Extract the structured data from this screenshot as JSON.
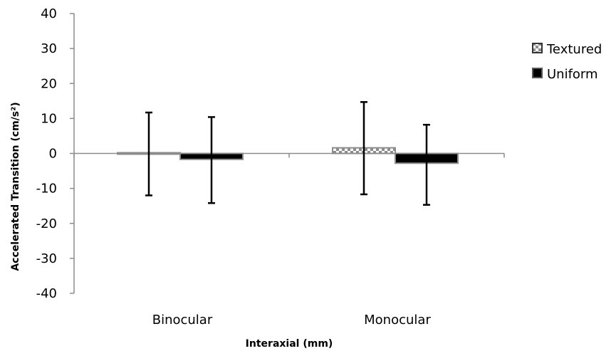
{
  "chart_data": {
    "type": "bar",
    "title": "",
    "xlabel": "Interaxial (mm)",
    "ylabel": "Accelerated Transition (cm/s²)",
    "ylim": [
      -40,
      40
    ],
    "yticks": [
      40,
      30,
      20,
      10,
      0,
      -10,
      -20,
      -30,
      -40
    ],
    "categories": [
      "Binocular",
      "Monocular"
    ],
    "series": [
      {
        "name": "Textured",
        "values": [
          -0.3,
          1.6
        ],
        "error_low": [
          -12,
          -11.7
        ],
        "error_high": [
          11.7,
          14.7
        ],
        "fill": "pattern"
      },
      {
        "name": "Uniform",
        "values": [
          -1.7,
          -2.8
        ],
        "error_low": [
          -14.2,
          -14.7
        ],
        "error_high": [
          10.4,
          8.2
        ],
        "fill": "#000000"
      }
    ],
    "grid": false,
    "legend_position": "right",
    "colors": {
      "bar_border": "#8c8c8c",
      "axis": "#8c8c8c",
      "textured_fill": "#ffffff",
      "textured_pattern": "#8c8c8c",
      "uniform_fill": "#000000"
    }
  }
}
